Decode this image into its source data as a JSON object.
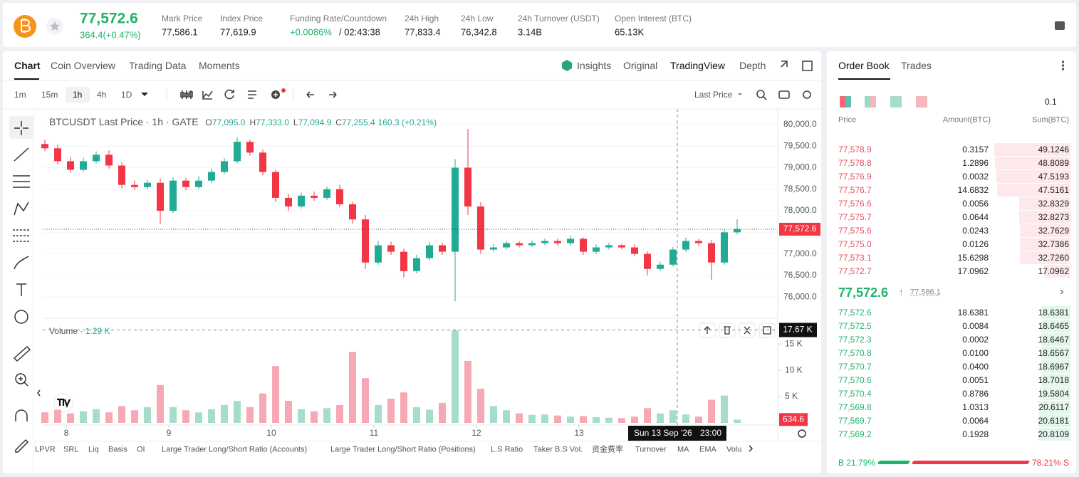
{
  "header": {
    "price": "77,572.6",
    "change": "364.4(+0.47%)",
    "stats": [
      {
        "label": "Mark Price",
        "value": "77,586.1"
      },
      {
        "label": "Index Price",
        "value": "77,619.9"
      },
      {
        "label": "Funding Rate/Countdown",
        "value": "+0.0086%",
        "extra": "/ 02:43:38"
      },
      {
        "label": "24h High",
        "value": "77,833.4"
      },
      {
        "label": "24h Low",
        "value": "76,342.8"
      },
      {
        "label": "24h Turnover (USDT)",
        "value": "3.14B"
      },
      {
        "label": "Open Interest (BTC)",
        "value": "65.13K"
      }
    ]
  },
  "chart_tabs": [
    "Chart",
    "Coin Overview",
    "Trading Data",
    "Moments"
  ],
  "view_tabs": [
    "Insights",
    "Original",
    "TradingView",
    "Depth"
  ],
  "intervals": [
    "1m",
    "15m",
    "1h",
    "4h",
    "1D"
  ],
  "price_type": "Last Price",
  "indicators": [
    "LPVR",
    "SRL",
    "Liq",
    "Basis",
    "OI",
    "Large Trader Long/Short Ratio (Accounts)",
    "Large Trader Long/Short Ratio (Positions)",
    "L.S Ratio",
    "Taker B.S Vol.",
    "资金费率",
    "Turnover",
    "MA",
    "EMA",
    "Volu"
  ],
  "chart_data": {
    "type": "candlestick",
    "legend": {
      "title": "BTCUSDT Last Price · 1h · GATE",
      "ohlc": [
        [
          "O",
          "77,095.0"
        ],
        [
          "H",
          "77,333.0"
        ],
        [
          "L",
          "77,094.9"
        ],
        [
          "C",
          "77,255.4"
        ]
      ],
      "change": "160.3 (+0.21%)"
    },
    "up_color": "#22ab94",
    "down_color": "#f23645",
    "x": [
      0.5,
      3.5,
      6.5,
      9.5,
      12.5,
      15.5,
      18.5,
      21.5,
      24.5,
      27.5,
      30.5,
      33.5,
      36.5,
      39.5,
      42.5,
      45.5,
      48.5,
      51.5,
      54.5,
      57.5,
      60.5,
      63.5,
      66.5,
      69.5,
      72.5,
      75.5,
      78.5,
      81.5,
      84.5,
      87.5,
      90.5,
      93.5,
      96.5,
      99.5,
      102.5,
      105.5,
      108.5,
      111.5,
      114.5,
      117.5,
      120.5,
      123.5,
      126.5,
      129.5,
      132.5,
      135.5,
      138.5,
      141.5,
      144.5,
      147.5,
      150.5,
      153.5,
      156.5,
      159.5,
      162.5
    ],
    "open": [
      79550,
      79450,
      79150,
      78950,
      79150,
      79300,
      79050,
      78600,
      78550,
      78650,
      78000,
      78700,
      78550,
      78700,
      78900,
      79150,
      79600,
      79350,
      78900,
      78300,
      78100,
      78350,
      78300,
      78500,
      78150,
      77800,
      76800,
      77200,
      77050,
      76600,
      76900,
      77200,
      77050,
      79000,
      78100,
      77100,
      77150,
      77250,
      77200,
      77250,
      77300,
      77250,
      77350,
      77050,
      77150,
      77200,
      77150,
      77000,
      76650,
      76750,
      77100,
      77300,
      77250,
      76800,
      77500
    ],
    "high": [
      79650,
      79530,
      79250,
      79230,
      79380,
      79400,
      79120,
      78700,
      78720,
      78750,
      78780,
      78760,
      78800,
      78980,
      79220,
      79700,
      79650,
      79420,
      78950,
      78400,
      78420,
      78450,
      78560,
      78600,
      78200,
      77900,
      77300,
      77280,
      77120,
      76980,
      77280,
      77260,
      79200,
      79900,
      78200,
      77230,
      77300,
      77300,
      77310,
      77350,
      77360,
      77420,
      77380,
      77220,
      77260,
      77240,
      77220,
      77060,
      76820,
      77160,
      77380,
      77350,
      77320,
      77560,
      77800
    ],
    "low": [
      79380,
      79080,
      78880,
      78900,
      79100,
      78980,
      78520,
      78480,
      78500,
      77700,
      77950,
      78480,
      78500,
      78650,
      78850,
      79100,
      79280,
      78820,
      78200,
      78000,
      78050,
      78230,
      78250,
      78080,
      77700,
      76650,
      76750,
      76980,
      76450,
      76550,
      76850,
      76980,
      75900,
      77900,
      77000,
      77050,
      77100,
      77150,
      77160,
      77200,
      77190,
      77200,
      76980,
      77000,
      77100,
      77100,
      76950,
      76500,
      76600,
      76700,
      77050,
      77180,
      76400,
      76750,
      77450
    ],
    "close": [
      79450,
      79150,
      78950,
      79150,
      79300,
      79050,
      78600,
      78550,
      78650,
      78000,
      78700,
      78550,
      78700,
      78900,
      79150,
      79600,
      79350,
      78900,
      78300,
      78100,
      78350,
      78300,
      78500,
      78150,
      77800,
      76800,
      77200,
      77050,
      76600,
      76900,
      77200,
      77050,
      79000,
      78100,
      77100,
      77150,
      77250,
      77200,
      77250,
      77300,
      77250,
      77350,
      77050,
      77150,
      77200,
      77150,
      77000,
      76650,
      76750,
      77100,
      77300,
      77250,
      76800,
      77500,
      77572.6
    ],
    "xlim": [
      0,
      172
    ],
    "xticks": [
      {
        "value": 5.5,
        "label": "8"
      },
      {
        "value": 29.5,
        "label": "9"
      },
      {
        "value": 53.5,
        "label": "10"
      },
      {
        "value": 77.5,
        "label": "11"
      },
      {
        "value": 101.5,
        "label": "12"
      },
      {
        "value": 125.5,
        "label": "13"
      }
    ],
    "ylim": [
      75540,
      80330
    ],
    "yticks": [
      {
        "value": 76000,
        "label": "76,000.0"
      },
      {
        "value": 76500,
        "label": "76,500.0"
      },
      {
        "value": 77000,
        "label": "77,000.0"
      },
      {
        "value": 77500,
        "label": "77,500.0"
      },
      {
        "value": 78000,
        "label": "78,000.0"
      },
      {
        "value": 78500,
        "label": "78,500.0"
      },
      {
        "value": 79000,
        "label": "79,000.0"
      },
      {
        "value": 79500,
        "label": "79,500.0"
      },
      {
        "value": 80000,
        "label": "80,000.0"
      }
    ],
    "last_price": {
      "value": 77572.6,
      "label": "77,572.6"
    },
    "crosshair": {
      "x": 148.5,
      "date": "Sun 13 Sep '26",
      "time": "23:00"
    },
    "volume": {
      "label": "Volume",
      "current": "1.29 K",
      "up_color": "#a5ddca",
      "down_color": "#f6a9b4",
      "values": [
        2000,
        2500,
        1800,
        2200,
        2600,
        2000,
        3200,
        2400,
        3000,
        7200,
        3000,
        2400,
        2000,
        2600,
        3400,
        4200,
        3000,
        5600,
        10800,
        4200,
        2600,
        2200,
        2800,
        3400,
        13500,
        8500,
        3400,
        4600,
        5800,
        3000,
        2500,
        3800,
        17600,
        11800,
        6500,
        3200,
        2400,
        1800,
        1500,
        1600,
        1400,
        1200,
        1300,
        1100,
        1000,
        900,
        1200,
        2800,
        1800,
        2400,
        1600,
        1200,
        4400,
        5200,
        634.6
      ],
      "ylim": [
        0,
        19500
      ],
      "yticks": [
        {
          "value": 5000,
          "label": "5 K"
        },
        {
          "value": 10000,
          "label": "10 K"
        },
        {
          "value": 15000,
          "label": "15 K"
        }
      ],
      "crosshair_value": {
        "value": 17670,
        "label": "17.67 K"
      },
      "last": 634.6
    }
  },
  "order_book": {
    "tabs": [
      "Order Book",
      "Trades"
    ],
    "precision": "0.1",
    "headers": [
      "Price",
      "Amount(BTC)",
      "Sum(BTC)"
    ],
    "asks": [
      [
        "77,578.9",
        0.3157,
        49.1246
      ],
      [
        "77,578.8",
        1.2896,
        48.8089
      ],
      [
        "77,576.9",
        0.0032,
        47.5193
      ],
      [
        "77,576.7",
        14.6832,
        47.5161
      ],
      [
        "77,576.6",
        0.0056,
        32.8329
      ],
      [
        "77,575.7",
        0.0644,
        32.8273
      ],
      [
        "77,575.6",
        0.0243,
        32.7629
      ],
      [
        "77,575.0",
        0.0126,
        32.7386
      ],
      [
        "77,573.1",
        15.6298,
        {
          "value": 32.726,
          "label": "32.7260"
        }
      ],
      [
        "77,572.7",
        17.0962,
        17.0962
      ]
    ],
    "mid_price": "77,572.6",
    "mark_price": "77,586.1",
    "bids": [
      [
        "77,572.6",
        18.6381,
        18.6381
      ],
      [
        "77,572.5",
        0.0084,
        18.6465
      ],
      [
        "77,572.3",
        0.0002,
        18.6467
      ],
      [
        "77,570.8",
        {
          "value": 0.01,
          "label": "0.0100"
        },
        18.6567
      ],
      [
        "77,570.7",
        {
          "value": 0.04,
          "label": "0.0400"
        },
        18.6967
      ],
      [
        "77,570.6",
        0.0051,
        18.7018
      ],
      [
        "77,570.4",
        0.8786,
        19.5804
      ],
      [
        "77,569.8",
        1.0313,
        20.6117
      ],
      [
        "77,569.7",
        0.0064,
        20.6181
      ],
      [
        "77,569.2",
        0.1928,
        20.8109
      ]
    ],
    "buy_tag": "B",
    "buy": {
      "value": 21.79,
      "label": "21.79%"
    },
    "sell": {
      "value": 78.21,
      "label": "78.21%"
    },
    "sell_tag": "S"
  }
}
